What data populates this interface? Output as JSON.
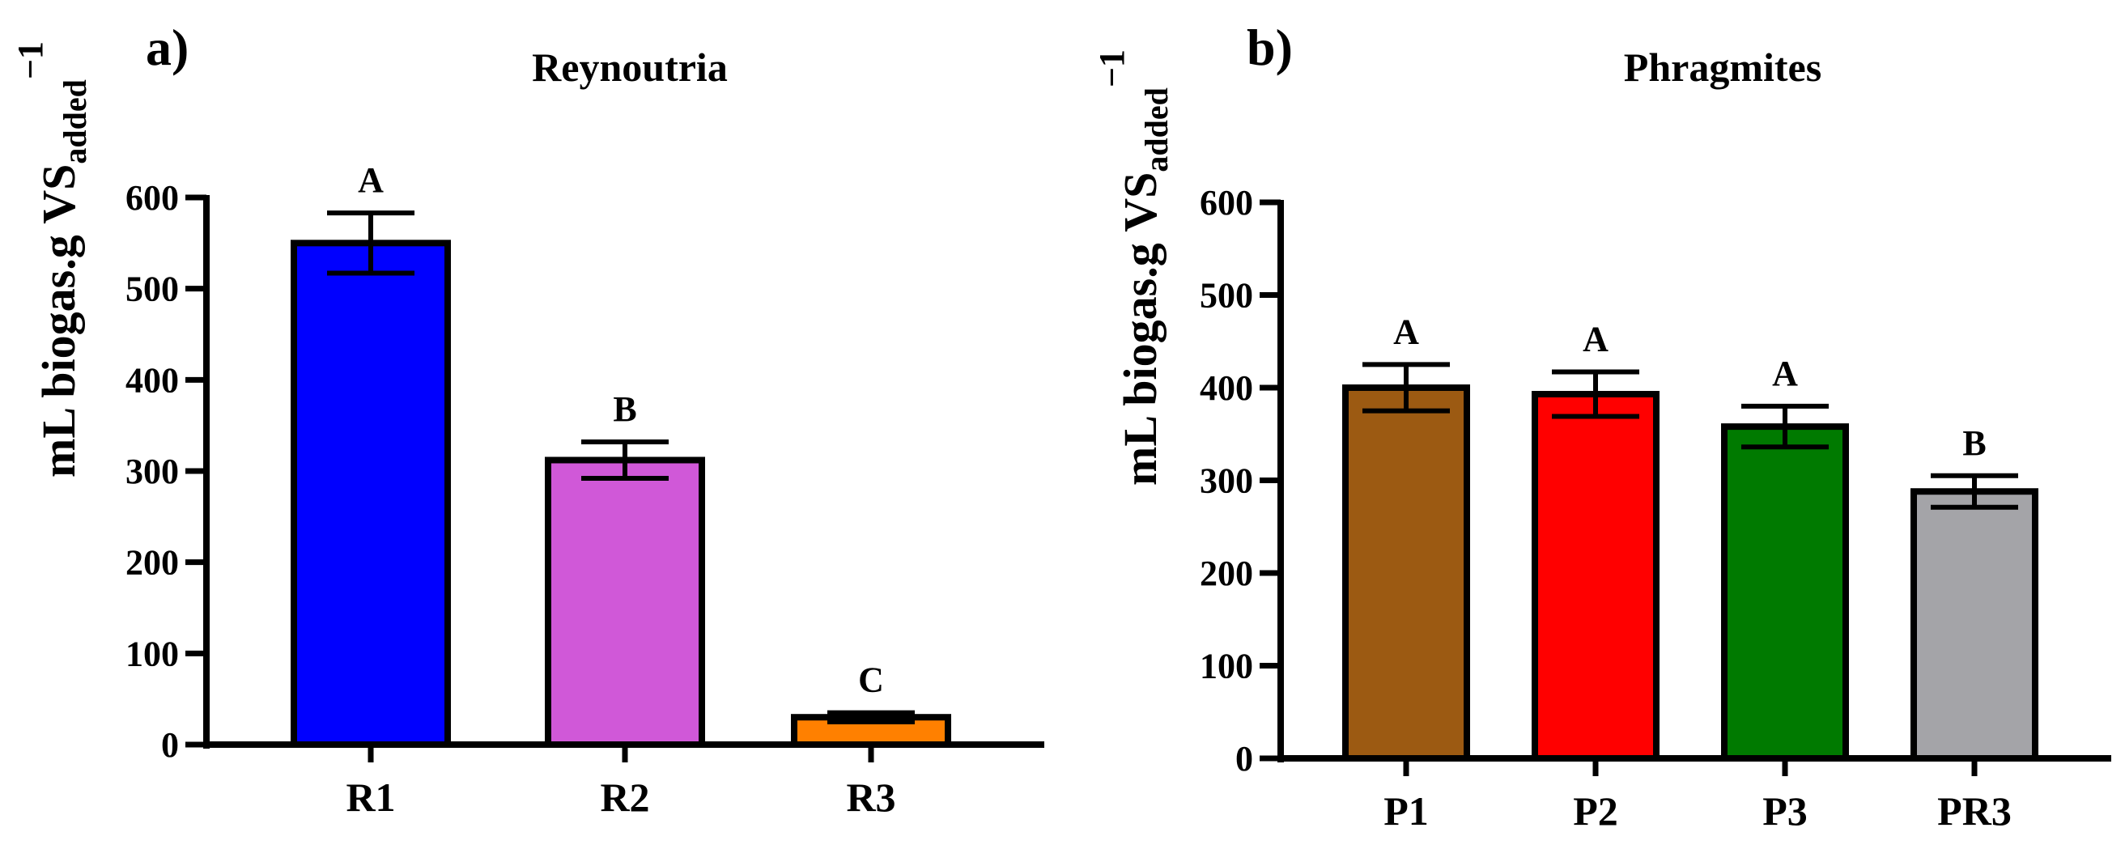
{
  "chart_data": [
    {
      "type": "bar",
      "panel_label": "a)",
      "title": "Reynoutria",
      "xlabel": "",
      "ylabel": "mL biogas.g VS",
      "ylabel_sub": "added",
      "ylabel_sup": "−1",
      "ylim": [
        0,
        600
      ],
      "yticks": [
        0,
        100,
        200,
        300,
        400,
        500,
        600
      ],
      "categories": [
        "R1",
        "R2",
        "R3"
      ],
      "values": [
        550,
        312,
        30
      ],
      "errors": [
        33,
        20,
        5
      ],
      "significance": [
        "A",
        "B",
        "C"
      ],
      "colors": [
        "#0000ff",
        "#d058d8",
        "#ff8000"
      ]
    },
    {
      "type": "bar",
      "panel_label": "b)",
      "title": "Phragmites",
      "xlabel": "",
      "ylabel": "mL biogas.g VS",
      "ylabel_sub": "added",
      "ylabel_sup": "−1",
      "ylim": [
        0,
        600
      ],
      "yticks": [
        0,
        100,
        200,
        300,
        400,
        500,
        600
      ],
      "categories": [
        "P1",
        "P2",
        "P3",
        "PR3"
      ],
      "values": [
        400,
        393,
        358,
        288
      ],
      "errors": [
        25,
        24,
        22,
        17
      ],
      "significance": [
        "A",
        "A",
        "A",
        "B"
      ],
      "colors": [
        "#9c5a12",
        "#ff0000",
        "#007a00",
        "#a4a4a8"
      ]
    }
  ]
}
